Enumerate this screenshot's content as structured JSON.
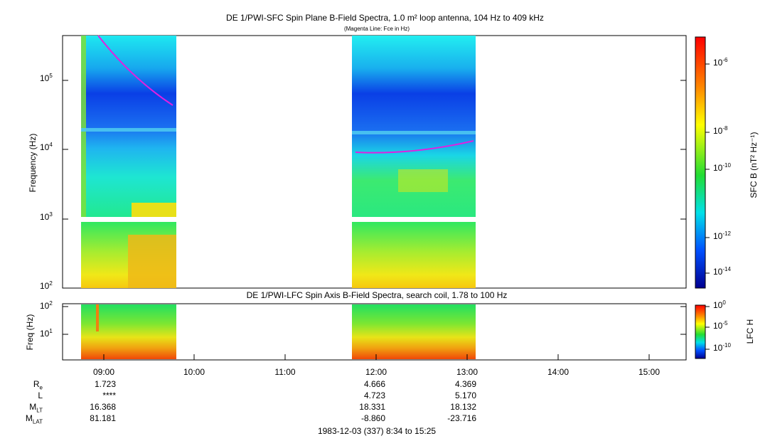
{
  "chart_data": [
    {
      "type": "heatmap",
      "title": "DE 1/PWI-SFC  Spin Plane B-Field Spectra, 1.0 m² loop antenna, 104 Hz to 409 kHz",
      "subtitle": "(Magenta Line: Fce in Hz)",
      "ylabel": "Frequency (Hz)",
      "yscale": "log",
      "ylim": [
        100,
        409000
      ],
      "yticks": [
        "10^2",
        "10^3",
        "10^4",
        "10^5"
      ],
      "xlim": [
        "08:34",
        "15:25"
      ],
      "data_intervals": [
        [
          "08:47",
          "09:48"
        ],
        [
          "11:43",
          "13:08"
        ]
      ],
      "fce_line": {
        "name": "Fce",
        "segment1": {
          "x": [
            "08:53",
            "09:47"
          ],
          "y": [
            409000,
            42000
          ]
        },
        "segment2": {
          "x": [
            "11:46",
            "13:07"
          ],
          "y": [
            9000,
            13000
          ]
        }
      },
      "colorbar": {
        "label": "SFC B (nT² Hz⁻¹)",
        "scale": "log",
        "range": [
          "1e-15",
          "1e-5"
        ],
        "tick_exponents": [
          "-6",
          "-8",
          "-10",
          "-12",
          "-14"
        ]
      }
    },
    {
      "type": "heatmap",
      "title": "DE 1/PWI-LFC  Spin Axis B-Field Spectra, search coil, 1.78 to 100 Hz",
      "ylabel": "Freq (Hz)",
      "yscale": "log",
      "ylim": [
        1.78,
        100
      ],
      "yticks": [
        "10^1",
        "10^2"
      ],
      "colorbar": {
        "label": "LFC H",
        "scale": "log",
        "tick_exponents": [
          "0",
          "-5",
          "-10"
        ]
      }
    }
  ],
  "xaxis": {
    "tick_labels": [
      "09:00",
      "10:00",
      "11:00",
      "12:00",
      "13:00",
      "14:00",
      "15:00"
    ],
    "date_label": "1983-12-03 (337) 8:34 to 15:25"
  },
  "ephemeris": {
    "rows": [
      {
        "label": "R",
        "sub": "e",
        "values": [
          "1.723",
          "4.666",
          "4.369"
        ]
      },
      {
        "label": "L",
        "sub": "",
        "values": [
          "****",
          "4.723",
          "5.170"
        ]
      },
      {
        "label": "M",
        "sub": "LT",
        "values": [
          "16.368",
          "18.331",
          "18.132"
        ]
      },
      {
        "label": "M",
        "sub": "LAT",
        "values": [
          "81.181",
          "-8.860",
          "-23.716"
        ]
      }
    ]
  }
}
